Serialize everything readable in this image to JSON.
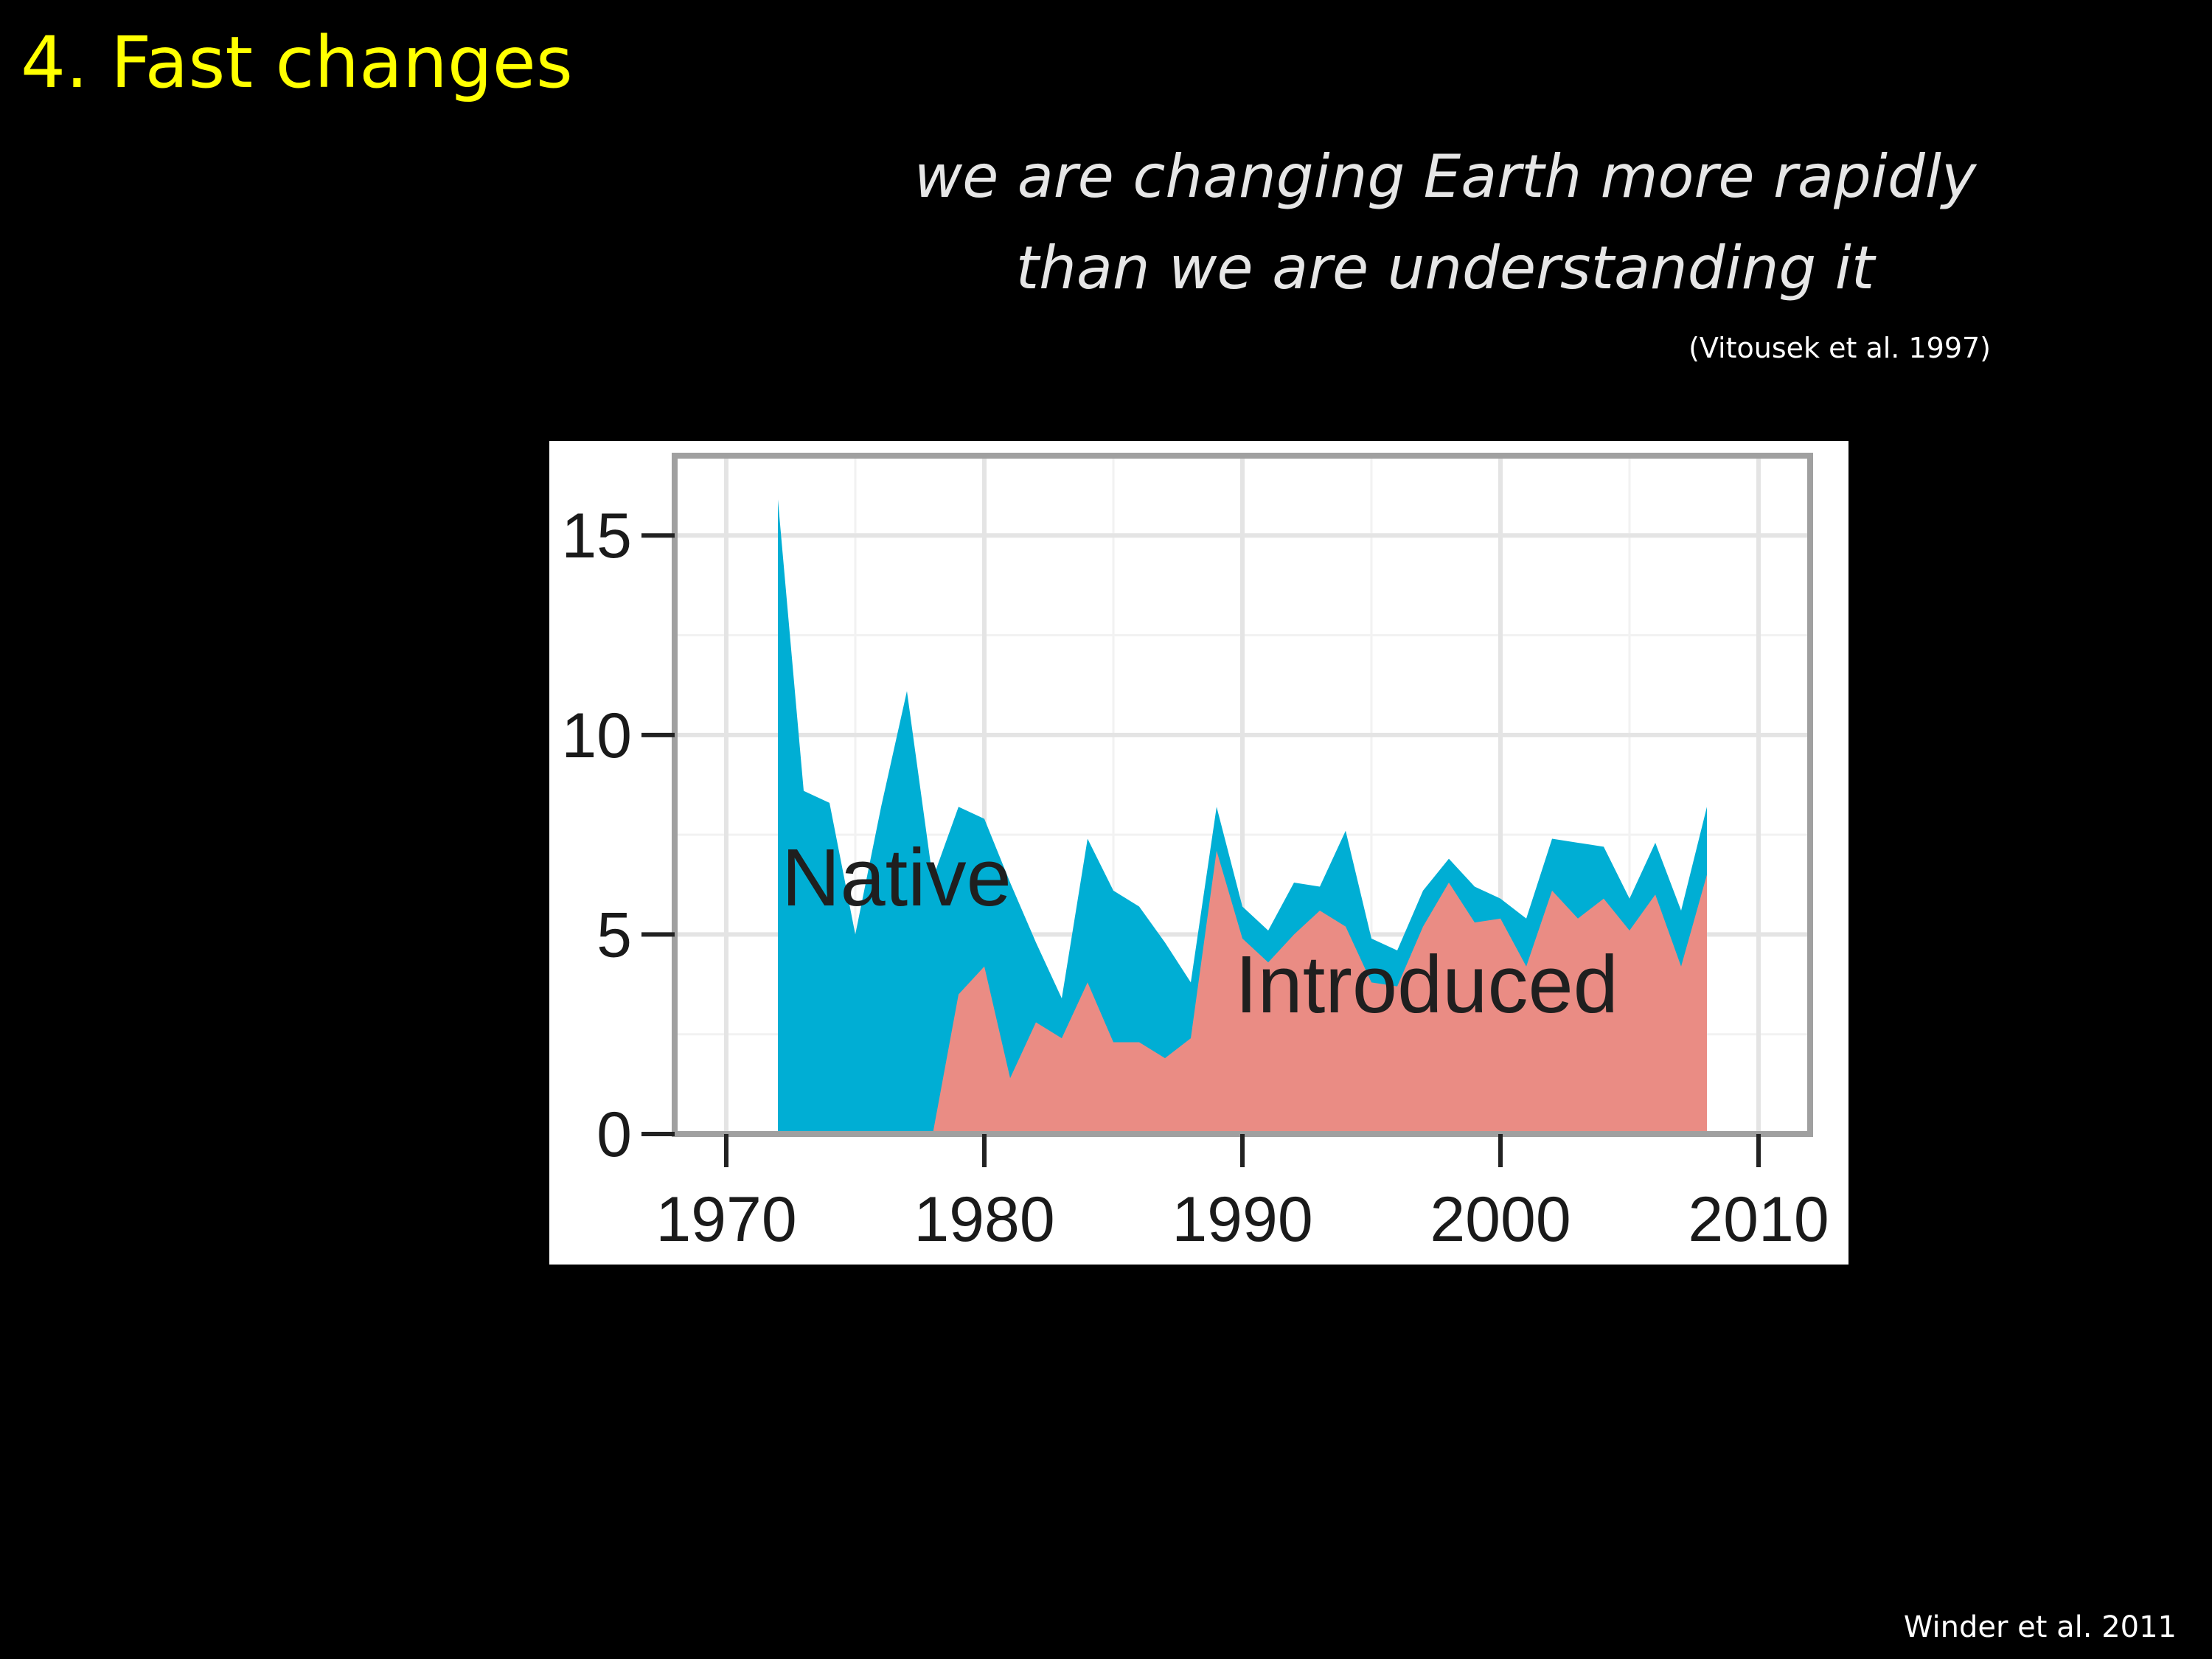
{
  "slide": {
    "title": "4. Fast changes",
    "quote_line1": "we are changing Earth more rapidly",
    "quote_line2": "than we are understanding it",
    "quote_citation": "(Vitousek et al. 1997)",
    "source_citation": "Winder et al. 2011"
  },
  "colors": {
    "background": "#000000",
    "title": "#ffff00",
    "native": "#00aed4",
    "introduced": "#ea8c84"
  },
  "chart_data": {
    "type": "area",
    "stacked": true,
    "title": "",
    "xlabel": "",
    "ylabel": "",
    "xlim": [
      1968,
      2012
    ],
    "ylim": [
      0,
      17
    ],
    "xticks": [
      1970,
      1980,
      1990,
      2000,
      2010
    ],
    "yticks": [
      0,
      5,
      10,
      15
    ],
    "grid": true,
    "series": [
      {
        "name": "Native",
        "label": "Native",
        "color": "#00aed4",
        "x": [
          1972,
          1973,
          1974,
          1975,
          1976,
          1977,
          1978,
          1979,
          1980,
          1981,
          1982,
          1983,
          1984,
          1985,
          1986,
          1987,
          1988,
          1989,
          1990,
          1991,
          1992,
          1993,
          1994,
          1995,
          1996,
          1997,
          1998,
          1999,
          2000,
          2001,
          2002,
          2003,
          2004,
          2005,
          2006,
          2007,
          2008
        ],
        "values": [
          15.9,
          8.6,
          8.3,
          5.0,
          8.2,
          11.1,
          6.4,
          8.2,
          7.9,
          6.3,
          4.8,
          3.4,
          7.4,
          6.1,
          5.7,
          4.8,
          3.8,
          8.2,
          5.7,
          5.1,
          6.3,
          6.2,
          7.6,
          4.9,
          4.6,
          6.1,
          6.9,
          6.2,
          5.9,
          5.4,
          7.4,
          7.3,
          7.2,
          5.9,
          7.3,
          5.6,
          8.2
        ]
      },
      {
        "name": "Introduced",
        "label": "Introduced",
        "color": "#ea8c84",
        "x": [
          1972,
          1973,
          1974,
          1975,
          1976,
          1977,
          1978,
          1979,
          1980,
          1981,
          1982,
          1983,
          1984,
          1985,
          1986,
          1987,
          1988,
          1989,
          1990,
          1991,
          1992,
          1993,
          1994,
          1995,
          1996,
          1997,
          1998,
          1999,
          2000,
          2001,
          2002,
          2003,
          2004,
          2005,
          2006,
          2007,
          2008
        ],
        "values": [
          0,
          0,
          0,
          0,
          0,
          0,
          0,
          3.5,
          4.2,
          1.4,
          2.8,
          2.4,
          3.8,
          2.3,
          2.3,
          1.9,
          2.4,
          7.1,
          4.9,
          4.3,
          5.0,
          5.6,
          5.2,
          3.8,
          3.7,
          5.2,
          6.3,
          5.3,
          5.4,
          4.2,
          6.1,
          5.4,
          5.9,
          5.1,
          6.0,
          4.2,
          6.5
        ]
      }
    ]
  }
}
